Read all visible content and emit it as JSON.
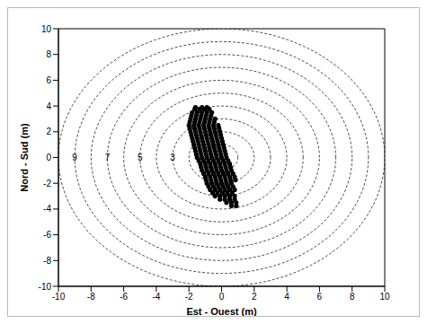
{
  "chart_data": {
    "type": "scatter",
    "xlabel": "Est - Ouest (m)",
    "ylabel": "Nord - Sud (m)",
    "xlim": [
      -10,
      10
    ],
    "ylim": [
      -10,
      10
    ],
    "xticks": [
      -10,
      -8,
      -6,
      -4,
      -2,
      0,
      2,
      4,
      6,
      8,
      10
    ],
    "yticks": [
      -10,
      -8,
      -6,
      -4,
      -2,
      0,
      2,
      4,
      6,
      8,
      10
    ],
    "grid": false,
    "color": "#000000",
    "marker": "circle",
    "circle_radii": [
      1,
      2,
      3,
      4,
      5,
      6,
      7,
      8,
      9,
      10
    ],
    "circle_line_style": "dashed",
    "circle_labels": [
      {
        "x": -9,
        "y": 0,
        "text": "9"
      },
      {
        "x": -7,
        "y": 0,
        "text": "7"
      },
      {
        "x": -5,
        "y": 0,
        "text": "5"
      },
      {
        "x": -3,
        "y": 0,
        "text": "3"
      }
    ],
    "x": [
      -1.6,
      -1.2,
      -0.9,
      -1.65,
      -1.35,
      -1.05,
      -0.75,
      -1.8,
      -1.5,
      -1.2,
      -0.9,
      -0.6,
      -1.85,
      -1.55,
      -1.25,
      -0.95,
      -0.65,
      -1.9,
      -1.6,
      -1.3,
      -1.0,
      -0.7,
      -0.4,
      -1.95,
      -1.65,
      -1.35,
      -1.05,
      -0.75,
      -0.45,
      -2.0,
      -1.7,
      -1.4,
      -1.1,
      -0.8,
      -0.5,
      -0.2,
      -1.95,
      -1.65,
      -1.35,
      -1.05,
      -0.75,
      -0.45,
      -0.15,
      -1.9,
      -1.6,
      -1.3,
      -1.0,
      -0.7,
      -0.4,
      -0.1,
      -1.85,
      -1.55,
      -1.25,
      -0.95,
      -0.65,
      -0.35,
      -0.05,
      -1.8,
      -1.5,
      -1.2,
      -0.9,
      -0.6,
      -0.3,
      0.0,
      -1.75,
      -1.45,
      -1.15,
      -0.85,
      -0.55,
      -0.25,
      0.05,
      -1.7,
      -1.4,
      -1.1,
      -0.8,
      -0.5,
      -0.2,
      0.1,
      -1.65,
      -1.35,
      -1.05,
      -0.75,
      -0.45,
      -0.15,
      0.15,
      -1.6,
      -1.3,
      -1.0,
      -0.7,
      -0.4,
      -0.1,
      0.2,
      -1.55,
      -1.25,
      -0.95,
      -0.65,
      -0.35,
      -0.05,
      0.25,
      -1.5,
      -1.2,
      -0.9,
      -0.6,
      -0.3,
      0.0,
      0.3,
      -1.4,
      -1.1,
      -0.8,
      -0.5,
      -0.2,
      0.1,
      0.4,
      -1.3,
      -1.0,
      -0.7,
      -0.4,
      -0.1,
      0.2,
      0.5,
      -1.25,
      -0.95,
      -0.65,
      -0.35,
      -0.05,
      0.25,
      0.55,
      -1.2,
      -0.9,
      -0.6,
      -0.3,
      0.0,
      0.3,
      0.6,
      -1.1,
      -0.8,
      -0.5,
      -0.2,
      0.1,
      0.4,
      0.7,
      -1.0,
      -0.7,
      -0.4,
      -0.1,
      0.2,
      0.5,
      0.8,
      -0.95,
      -0.65,
      -0.35,
      -0.05,
      0.25,
      0.55,
      0.85,
      -0.9,
      -0.6,
      -0.3,
      0.0,
      0.3,
      0.6,
      -0.8,
      -0.5,
      -0.2,
      0.1,
      0.4,
      0.7,
      -0.7,
      -0.4,
      -0.1,
      0.2,
      0.5,
      0.8,
      -0.55,
      -0.25,
      0.05,
      0.35,
      0.65,
      -0.4,
      -0.1,
      0.2,
      0.5,
      0.8,
      -0.1,
      0.2,
      0.5,
      0.8,
      0.3,
      0.6,
      0.9,
      0.6,
      0.9
    ],
    "values": [
      3.9,
      3.9,
      3.9,
      3.75,
      3.75,
      3.75,
      3.75,
      3.5,
      3.5,
      3.5,
      3.5,
      3.5,
      3.25,
      3.25,
      3.25,
      3.25,
      3.25,
      3.0,
      3.0,
      3.0,
      3.0,
      3.0,
      3.0,
      2.75,
      2.75,
      2.75,
      2.75,
      2.75,
      2.75,
      2.5,
      2.5,
      2.5,
      2.5,
      2.5,
      2.5,
      2.5,
      2.25,
      2.25,
      2.25,
      2.25,
      2.25,
      2.25,
      2.25,
      2.0,
      2.0,
      2.0,
      2.0,
      2.0,
      2.0,
      2.0,
      1.75,
      1.75,
      1.75,
      1.75,
      1.75,
      1.75,
      1.75,
      1.5,
      1.5,
      1.5,
      1.5,
      1.5,
      1.5,
      1.5,
      1.25,
      1.25,
      1.25,
      1.25,
      1.25,
      1.25,
      1.25,
      1.0,
      1.0,
      1.0,
      1.0,
      1.0,
      1.0,
      1.0,
      0.75,
      0.75,
      0.75,
      0.75,
      0.75,
      0.75,
      0.75,
      0.5,
      0.5,
      0.5,
      0.5,
      0.5,
      0.5,
      0.5,
      0.25,
      0.25,
      0.25,
      0.25,
      0.25,
      0.25,
      0.25,
      0.0,
      0.0,
      0.0,
      0.0,
      0.0,
      0.0,
      0.0,
      -0.25,
      -0.25,
      -0.25,
      -0.25,
      -0.25,
      -0.25,
      -0.25,
      -0.5,
      -0.5,
      -0.5,
      -0.5,
      -0.5,
      -0.5,
      -0.5,
      -0.75,
      -0.75,
      -0.75,
      -0.75,
      -0.75,
      -0.75,
      -0.75,
      -1.0,
      -1.0,
      -1.0,
      -1.0,
      -1.0,
      -1.0,
      -1.0,
      -1.25,
      -1.25,
      -1.25,
      -1.25,
      -1.25,
      -1.25,
      -1.25,
      -1.5,
      -1.5,
      -1.5,
      -1.5,
      -1.5,
      -1.5,
      -1.5,
      -1.75,
      -1.75,
      -1.75,
      -1.75,
      -1.75,
      -1.75,
      -1.75,
      -2.0,
      -2.0,
      -2.0,
      -2.0,
      -2.0,
      -2.0,
      -2.25,
      -2.25,
      -2.25,
      -2.25,
      -2.25,
      -2.25,
      -2.5,
      -2.5,
      -2.5,
      -2.5,
      -2.5,
      -2.5,
      -2.75,
      -2.75,
      -2.75,
      -2.75,
      -2.75,
      -3.0,
      -3.0,
      -3.0,
      -3.0,
      -3.0,
      -3.25,
      -3.25,
      -3.25,
      -3.25,
      -3.5,
      -3.5,
      -3.5,
      -3.75,
      -3.75
    ]
  }
}
